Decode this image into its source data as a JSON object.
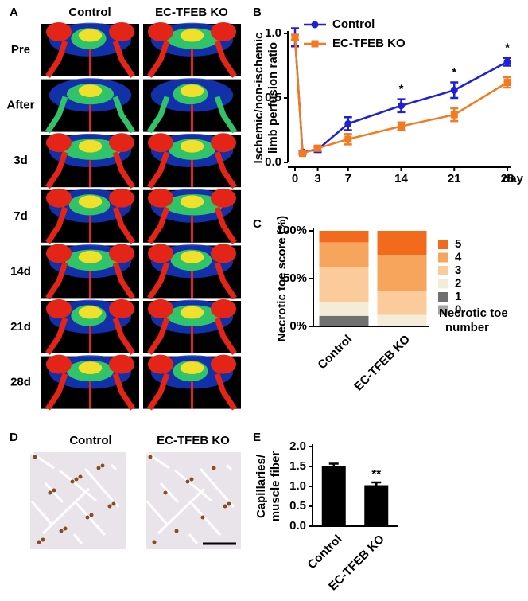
{
  "images": {
    "label": "A",
    "columns": [
      "Control",
      "EC-TFEB KO"
    ],
    "rows": [
      "Pre",
      "After",
      "3d",
      "7d",
      "14d",
      "21d",
      "28d"
    ]
  },
  "histology": {
    "label": "D",
    "columns": [
      "Control",
      "EC-TFEB KO"
    ]
  },
  "chart_data": [
    {
      "type": "line",
      "panel": "B",
      "y_label": [
        "Ischemic/non-ischemic",
        "limb perfusion ratio"
      ],
      "x_label": "day",
      "x": [
        0,
        1,
        3,
        7,
        14,
        21,
        28
      ],
      "xlim": [
        0,
        28
      ],
      "xticks": [
        0,
        3,
        7,
        14,
        21,
        28
      ],
      "ylim": [
        0,
        1
      ],
      "yticks": [
        {
          "value": 0,
          "label": "0.0"
        },
        {
          "value": 0.5,
          "label": "0.5"
        },
        {
          "value": 1,
          "label": "1.0"
        }
      ],
      "legend": "top-left",
      "series": [
        {
          "name": "Control",
          "color": "#1f1fd6",
          "marker": "circle",
          "values": [
            0.97,
            0.08,
            0.1,
            0.3,
            0.44,
            0.56,
            0.78
          ],
          "errors": [
            0.07,
            0.01,
            0.02,
            0.05,
            0.05,
            0.06,
            0.03
          ]
        },
        {
          "name": "EC-TFEB KO",
          "color": "#f47a20",
          "marker": "square",
          "values": [
            0.97,
            0.07,
            0.11,
            0.18,
            0.28,
            0.37,
            0.62
          ],
          "errors": [
            0.02,
            0.01,
            0.02,
            0.04,
            0.03,
            0.05,
            0.04
          ]
        }
      ],
      "annotations": [
        {
          "text": "*",
          "x": 14
        },
        {
          "text": "*",
          "x": 21
        },
        {
          "text": "*",
          "x": 28
        }
      ]
    },
    {
      "type": "stacked_bar",
      "panel": "C",
      "y_label": "Necrotic toe score (%)",
      "legend_title": [
        "Necrotic toe",
        "number"
      ],
      "categories": [
        "Control",
        "EC-TFEB KO"
      ],
      "ylim": [
        0,
        100
      ],
      "yticks": [
        {
          "value": 0,
          "label": "0%"
        },
        {
          "value": 50,
          "label": "50%"
        },
        {
          "value": 100,
          "label": "100%"
        }
      ],
      "legend": "right",
      "series": [
        {
          "name": "0",
          "color": "#a6a6a6",
          "values": [
            0,
            0
          ]
        },
        {
          "name": "1",
          "color": "#707070",
          "values": [
            11,
            0
          ]
        },
        {
          "name": "2",
          "color": "#f3ecd6",
          "values": [
            14,
            12
          ]
        },
        {
          "name": "3",
          "color": "#fbcb9c",
          "values": [
            37,
            25
          ]
        },
        {
          "name": "4",
          "color": "#f7a45c",
          "values": [
            26,
            38
          ]
        },
        {
          "name": "5",
          "color": "#f26b1d",
          "values": [
            12,
            25
          ]
        }
      ]
    },
    {
      "type": "bar",
      "panel": "E",
      "y_label": [
        "Capillaries/",
        "muscle fiber"
      ],
      "categories": [
        "Control",
        "EC-TFEB KO"
      ],
      "values": [
        1.5,
        1.03
      ],
      "errors": [
        0.07,
        0.07
      ],
      "color": "#000000",
      "ylim": [
        0,
        2
      ],
      "yticks": [
        {
          "value": 0,
          "label": "0.0"
        },
        {
          "value": 0.5,
          "label": "0.5"
        },
        {
          "value": 1,
          "label": "1.0"
        },
        {
          "value": 1.5,
          "label": "1.5"
        },
        {
          "value": 2,
          "label": "2.0"
        }
      ],
      "annotations": [
        {
          "text": "**",
          "x": "EC-TFEB KO"
        }
      ]
    }
  ]
}
